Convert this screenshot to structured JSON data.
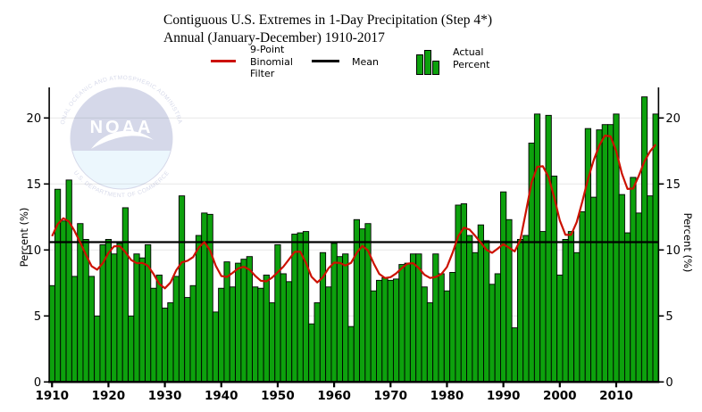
{
  "title": {
    "line1": "Contiguous U.S. Extremes in 1-Day Precipitation (Step 4*)",
    "line2": "Annual (January-December) 1910-2017"
  },
  "legend": {
    "filter_lines": [
      "9-Point",
      "Binomial",
      "Filter"
    ],
    "mean_label": "Mean",
    "actual_lines": [
      "Actual",
      "Percent"
    ]
  },
  "watermark": {
    "name": "NOAA",
    "ring_top": "NATIONAL OCEANIC AND ATMOSPHERIC ADMINISTRATION",
    "ring_bottom": "U.S. DEPARTMENT OF COMMERCE"
  },
  "chart_data": {
    "type": "bar",
    "title": "Contiguous U.S. Extremes in 1-Day Precipitation (Step 4*)",
    "subtitle": "Annual (January-December) 1910-2017",
    "ylabel": "Percent (%)",
    "ylabel_right": "Percent (%)",
    "x_start": 1910,
    "x_end": 2017,
    "ylim": [
      0,
      22.3
    ],
    "yticks": [
      0,
      5,
      10,
      15,
      20
    ],
    "xticks": [
      1910,
      1920,
      1930,
      1940,
      1950,
      1960,
      1970,
      1980,
      1990,
      2000,
      2010
    ],
    "grid": true,
    "legend_position": "top",
    "values": [
      7.3,
      14.6,
      12.2,
      15.3,
      8.0,
      12.0,
      10.8,
      8.0,
      5.0,
      10.4,
      10.8,
      9.7,
      10.5,
      13.2,
      5.0,
      9.7,
      9.4,
      10.4,
      7.1,
      8.1,
      5.6,
      6.0,
      8.0,
      14.1,
      6.4,
      7.3,
      11.1,
      12.8,
      12.7,
      5.3,
      7.1,
      9.1,
      7.2,
      9.0,
      9.3,
      9.5,
      7.2,
      7.1,
      8.1,
      6.0,
      10.4,
      8.2,
      7.6,
      11.2,
      11.3,
      11.4,
      4.4,
      6.0,
      9.8,
      7.2,
      10.5,
      9.5,
      9.7,
      4.2,
      12.3,
      11.6,
      12.0,
      6.9,
      7.7,
      7.9,
      7.7,
      7.8,
      8.9,
      9.0,
      9.7,
      9.7,
      7.2,
      6.0,
      9.7,
      8.2,
      6.9,
      8.3,
      13.4,
      13.5,
      11.1,
      9.8,
      11.9,
      10.7,
      7.4,
      8.2,
      14.4,
      12.3,
      4.1,
      10.8,
      11.1,
      18.1,
      20.3,
      11.4,
      20.2,
      15.6,
      8.1,
      10.8,
      11.4,
      9.8,
      12.9,
      19.2,
      14.0,
      19.1,
      19.5,
      19.5,
      20.3,
      14.2,
      11.3,
      15.5,
      12.8,
      21.6,
      14.1,
      20.3
    ],
    "overlays": {
      "filter": {
        "name": "9-Point Binomial Filter",
        "weights": [
          1,
          8,
          28,
          56,
          70,
          56,
          28,
          8,
          1
        ]
      },
      "mean": {
        "name": "Mean",
        "derived": "mean of annual values"
      }
    },
    "colors": {
      "bar_fill": "#0da10d",
      "bar_stroke": "#000000",
      "filter_line": "#cc1100",
      "mean_line": "#000000",
      "grid": "#e7e7e7",
      "watermark_blue": "#27388f",
      "watermark_light": "#9fd8f5"
    }
  }
}
